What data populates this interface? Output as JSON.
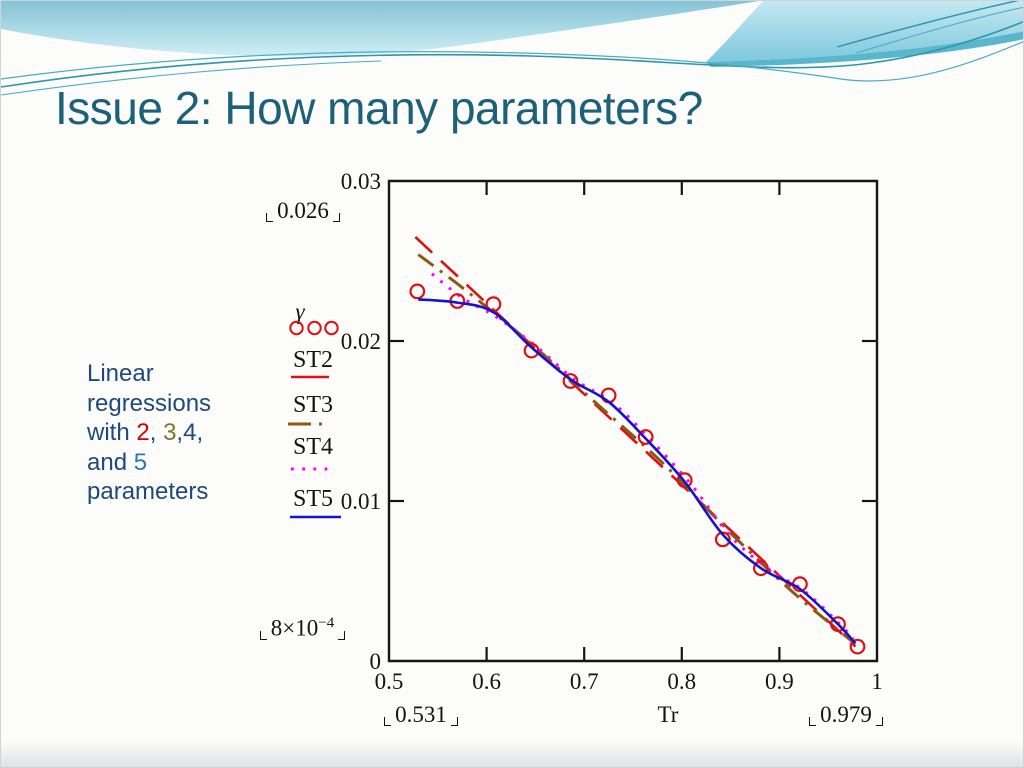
{
  "slide": {
    "title": "Issue 2: How many parameters?",
    "caption": {
      "segments": [
        {
          "text": "Linear regressions with ",
          "color": "#1F497D"
        },
        {
          "text": "2",
          "color": "#D40000"
        },
        {
          "text": ", ",
          "color": "#1F497D"
        },
        {
          "text": "3",
          "color": "#7F7430"
        },
        {
          "text": ",",
          "color": "#1F497D"
        },
        {
          "text": "4",
          "color": "#1F497D"
        },
        {
          "text": ", and ",
          "color": "#1F497D"
        },
        {
          "text": "5",
          "color": "#2E75B6"
        },
        {
          "text": " parameters",
          "color": "#1F497D"
        }
      ]
    },
    "theme": {
      "title_color": "#1C6079",
      "caption_color": "#1F497D",
      "wave_blue_dark": "#85C3D6",
      "wave_blue_light": "#CFEEF6",
      "wave_line_teal": "#2F95AC",
      "background": "#FCFCFA"
    }
  },
  "chart_data": {
    "type": "scatter",
    "title": "",
    "xlabel": "Tr",
    "ylabel": "",
    "legend_title": "γ",
    "xlim": [
      0.5,
      1
    ],
    "ylim": [
      0,
      0.03
    ],
    "grid": false,
    "x_tick_labels": [
      {
        "v": 0.5,
        "label": "0.5"
      },
      {
        "v": 0.6,
        "label": "0.6"
      },
      {
        "v": 0.7,
        "label": "0.7"
      },
      {
        "v": 0.8,
        "label": "0.8"
      },
      {
        "v": 0.9,
        "label": "0.9"
      },
      {
        "v": 1.0,
        "label": "1"
      }
    ],
    "y_tick_labels": [
      {
        "v": 0,
        "label": "0"
      },
      {
        "v": 0.01,
        "label": "0.01"
      },
      {
        "v": 0.02,
        "label": "0.02"
      },
      {
        "v": 0.03,
        "label": "0.03"
      }
    ],
    "axis_limit_annotations": {
      "x_min": "0.531",
      "x_max": "0.979",
      "y_max": "0.026",
      "y_min_mantissa": "8×10",
      "y_min_exponent": "−4"
    },
    "series": [
      {
        "name": "γ",
        "kind": "points",
        "marker": "circle",
        "color": "#E01010",
        "points": [
          [
            0.529,
            0.0231
          ],
          [
            0.57,
            0.0225
          ],
          [
            0.607,
            0.0223
          ],
          [
            0.646,
            0.0194
          ],
          [
            0.686,
            0.0175
          ],
          [
            0.725,
            0.0166
          ],
          [
            0.763,
            0.014
          ],
          [
            0.803,
            0.0113
          ],
          [
            0.842,
            0.0076
          ],
          [
            0.881,
            0.0058
          ],
          [
            0.921,
            0.0048
          ],
          [
            0.96,
            0.0023
          ],
          [
            0.98,
            0.0009
          ]
        ]
      },
      {
        "name": "ST2",
        "kind": "line",
        "style": "long-dash",
        "color": "#E01010",
        "points": [
          [
            0.527,
            0.0265
          ],
          [
            0.978,
            0.0009
          ]
        ]
      },
      {
        "name": "ST3",
        "kind": "line",
        "style": "dash-dot",
        "color": "#8B5A10",
        "points": [
          [
            0.53,
            0.0254
          ],
          [
            0.58,
            0.0231
          ],
          [
            0.65,
            0.0196
          ],
          [
            0.707,
            0.0164
          ],
          [
            0.78,
            0.0124
          ],
          [
            0.85,
            0.008
          ],
          [
            0.912,
            0.0044
          ],
          [
            0.975,
            0.0012
          ]
        ]
      },
      {
        "name": "ST4",
        "kind": "line",
        "style": "dotted",
        "color": "#FF00FF",
        "points": [
          [
            0.544,
            0.0242
          ],
          [
            0.575,
            0.0227
          ],
          [
            0.61,
            0.0215
          ],
          [
            0.65,
            0.0197
          ],
          [
            0.69,
            0.0176
          ],
          [
            0.73,
            0.0161
          ],
          [
            0.77,
            0.0137
          ],
          [
            0.81,
            0.011
          ],
          [
            0.85,
            0.0078
          ],
          [
            0.89,
            0.0057
          ],
          [
            0.925,
            0.0044
          ],
          [
            0.957,
            0.0026
          ],
          [
            0.976,
            0.0014
          ]
        ]
      },
      {
        "name": "ST5",
        "kind": "line",
        "style": "solid",
        "color": "#1414CC",
        "points": [
          [
            0.53,
            0.0226
          ],
          [
            0.57,
            0.0224
          ],
          [
            0.607,
            0.0218
          ],
          [
            0.646,
            0.0196
          ],
          [
            0.686,
            0.0176
          ],
          [
            0.725,
            0.0162
          ],
          [
            0.763,
            0.0139
          ],
          [
            0.803,
            0.0112
          ],
          [
            0.842,
            0.0079
          ],
          [
            0.881,
            0.0058
          ],
          [
            0.921,
            0.0045
          ],
          [
            0.96,
            0.0023
          ],
          [
            0.978,
            0.0011
          ]
        ]
      }
    ]
  }
}
